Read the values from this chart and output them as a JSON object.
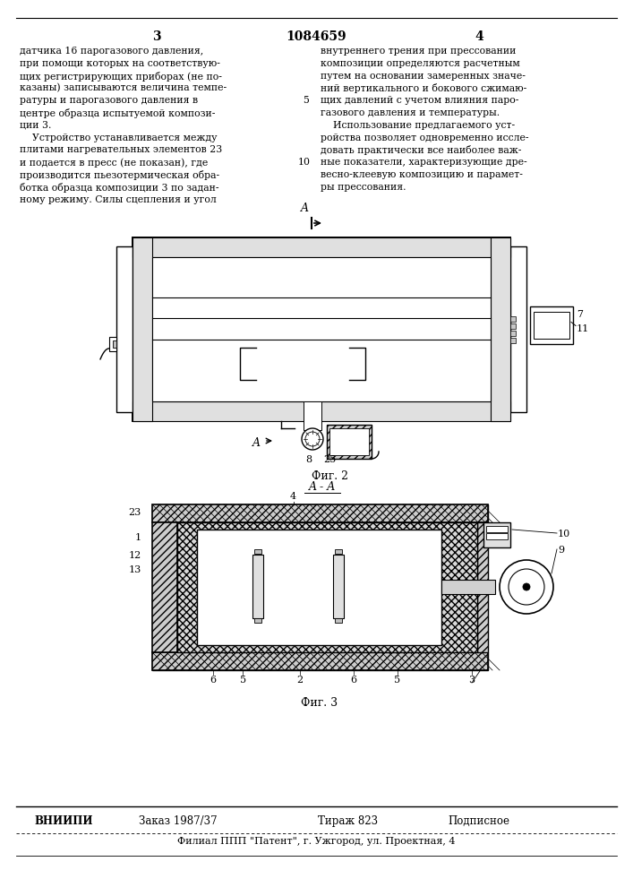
{
  "page_number_left": "3",
  "patent_number": "1084659",
  "page_number_right": "4",
  "bg_color": "#ffffff",
  "text_color": "#000000",
  "left_column_lines": [
    "датчика 16 парогазового давления,",
    "при помощи которых на соответствую-",
    "щих регистрирующих приборах (не по-",
    "казаны) записываются величина темпе-",
    "ратуры и парогазового давления в",
    "центре образца испытуемой компози-",
    "ции 3.",
    "    Устройство устанавливается между",
    "плитами нагревательных элементов 23",
    "и подается в пресс (не показан), где",
    "производится пьезотермическая обра-",
    "ботка образца композиции 3 по задан-",
    "ному режиму. Силы сцепления и угол"
  ],
  "right_column_lines": [
    "внутреннего трения при прессовании",
    "композиции определяются расчетным",
    "путем на основании замеренных значе-",
    "ний вертикального и бокового сжимаю-",
    "щих давлений с учетом влияния паро-",
    "газового давления и температуры.",
    "    Использование предлагаемого уст-",
    "ройства позволяет одновременно иссле-",
    "довать практически все наиболее важ-",
    "ные показатели, характеризующие дре-",
    "весно-клеевую композицию и парамет-",
    "ры прессования."
  ],
  "fig2_label": "Фиг. 2",
  "fig3_label": "Фиг. 3",
  "footer_org": "ВНИИПИ",
  "footer_order": "Заказ 1987/37",
  "footer_edition": "Тираж 823",
  "footer_type": "Подписное",
  "footer_address": "Филиал ППП \"Патент\", г. Ужгород, ул. Проектная, 4"
}
